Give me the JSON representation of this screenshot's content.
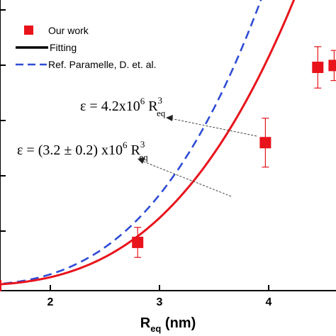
{
  "chart_data": {
    "type": "scatter",
    "xlabel_main": "R",
    "xlabel_sub": "eq",
    "xlabel_unit": " (nm)",
    "xticks": [
      2,
      3,
      4
    ],
    "xlim": [
      1.5,
      4.6
    ],
    "ylim": [
      0,
      1
    ],
    "series": [
      {
        "name": "Our work",
        "kind": "points",
        "color": "#e8131b",
        "x": [
          1.5,
          2.8,
          3.97,
          4.45,
          4.6
        ],
        "y": [
          0.0,
          0.115,
          0.38,
          0.58,
          0.585
        ],
        "yerr": [
          0.0,
          0.04,
          0.065,
          0.055,
          0.04
        ]
      },
      {
        "name": "Fitting",
        "kind": "line",
        "color": "#e8131b",
        "coef_label": "(3.2 ± 0.2) x10",
        "exp_label": "6"
      },
      {
        "name": "Ref. Paramelle, D. et. al.",
        "kind": "dashed-line",
        "color": "#2f4cd6",
        "coef_label": "4.2x10",
        "exp_label": "6"
      }
    ],
    "annotations": {
      "epsilon": "ε",
      "equals": " = ",
      "r_main": "R",
      "r_sup": "3",
      "r_sub": "eq"
    },
    "legend_position": "top-left"
  }
}
